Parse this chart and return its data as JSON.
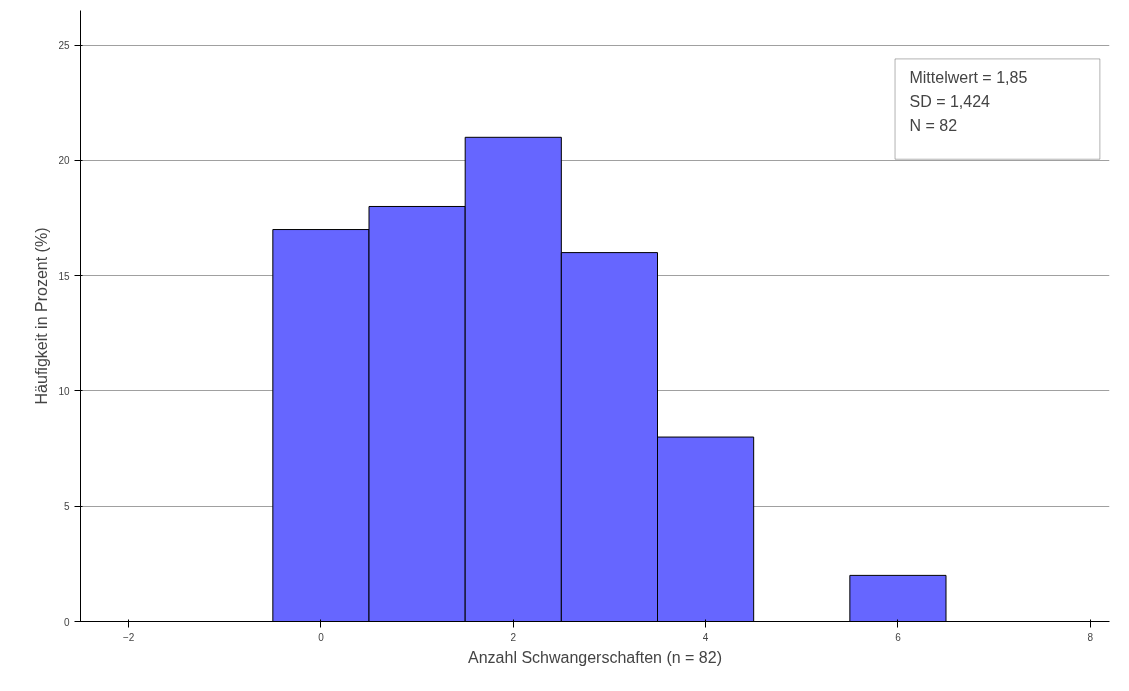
{
  "chart_data": {
    "type": "histogram",
    "xlabel": "Anzahl Schwangerschaften (n = 82)",
    "ylabel": "Häufigkeit in Prozent (%)",
    "bins": [
      -0.5,
      0.5,
      1.5,
      2.5,
      3.5,
      4.5,
      5.5,
      6.5
    ],
    "values": [
      17,
      18,
      21,
      16,
      8,
      0,
      2
    ],
    "color": "#6666ff",
    "xlim": [
      -2.5,
      8.2
    ],
    "xticks": [
      -2,
      0,
      2,
      4,
      6,
      8
    ],
    "ylim": [
      0,
      26.5
    ],
    "yticks": [
      0,
      5,
      10,
      15,
      20,
      25
    ],
    "grid": "y",
    "annotations": [
      "Mittelwert = 1,85",
      "SD = 1,424",
      "N = 82"
    ]
  }
}
